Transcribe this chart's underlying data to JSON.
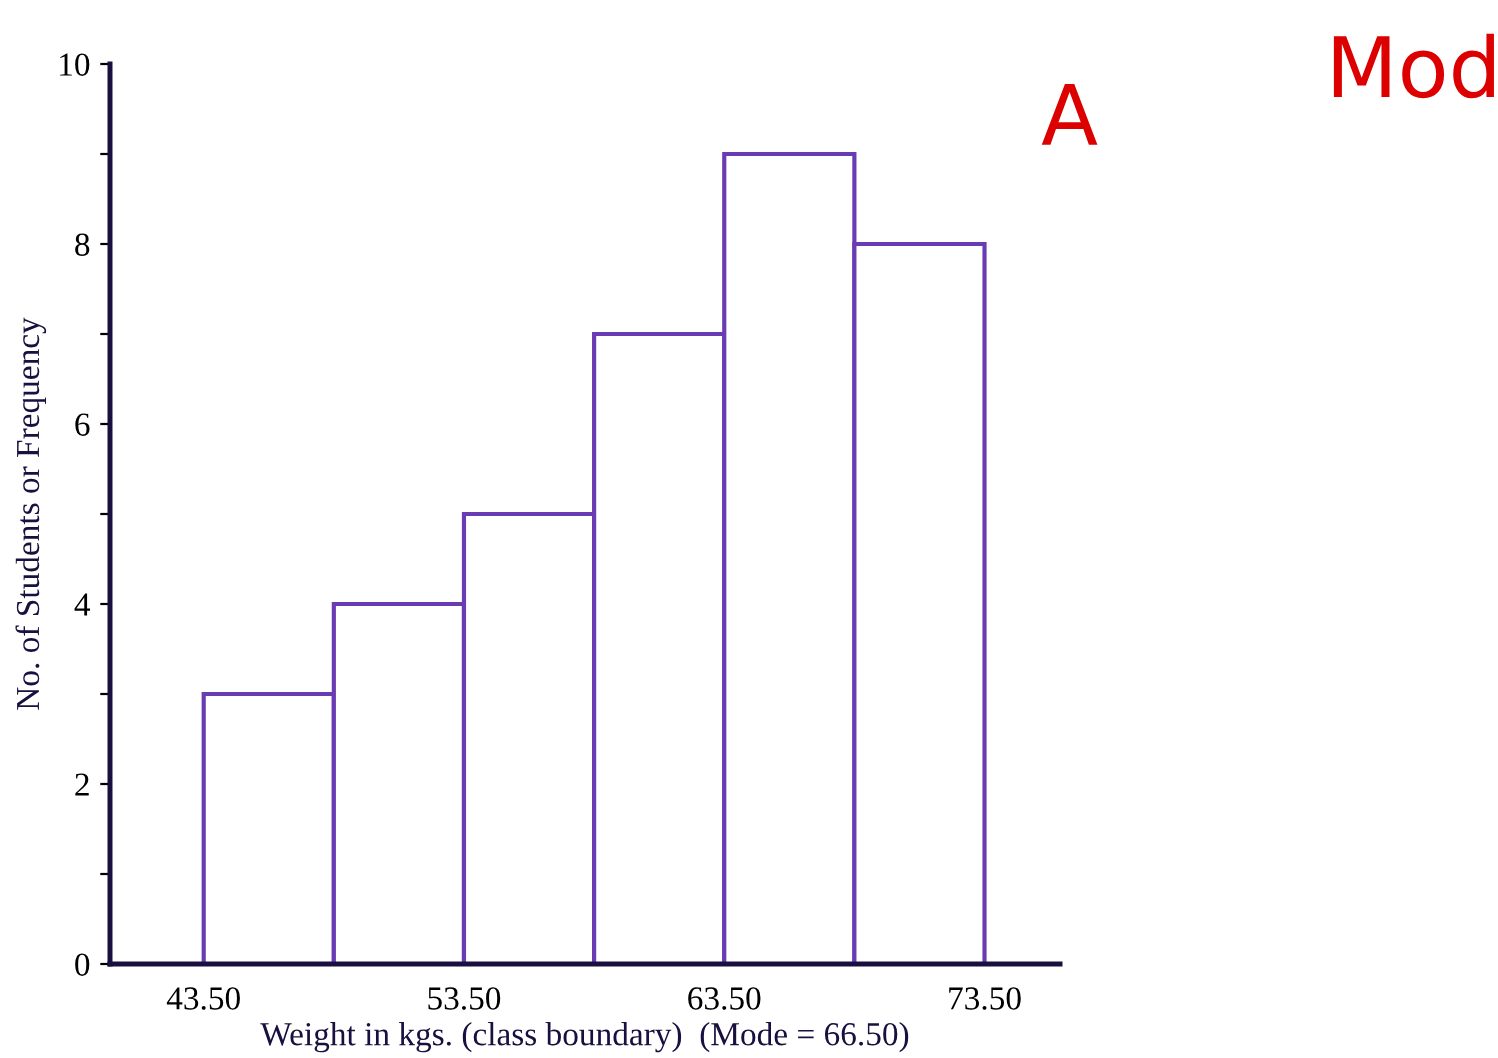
{
  "chart_data": {
    "type": "histogram",
    "bins": [
      43.5,
      48.5,
      53.5,
      58.5,
      63.5,
      68.5,
      73.5
    ],
    "values": [
      3,
      4,
      5,
      7,
      9,
      8
    ],
    "color": "#6a3cb4",
    "xlabel": "Weight in kgs. (class boundary)  (Mode = 66.50)",
    "ylabel": "No. of Students or Frequency",
    "xlim": [
      39.9,
      76.4
    ],
    "ylim": [
      0,
      10
    ],
    "xticks": [
      {
        "value": 43.5,
        "label": "43.50"
      },
      {
        "value": 53.5,
        "label": "53.50"
      },
      {
        "value": 63.5,
        "label": "63.50"
      },
      {
        "value": 73.5,
        "label": "73.50"
      }
    ],
    "yticks": [
      0,
      {
        "value": 1,
        "label": null
      },
      2,
      {
        "value": 3,
        "label": null
      },
      4,
      {
        "value": 5,
        "label": null
      },
      6,
      {
        "value": 7,
        "label": null
      },
      8,
      {
        "value": 9,
        "label": null
      },
      10
    ],
    "annotations": [
      "A",
      "Mod"
    ],
    "grid": false,
    "legend": false
  }
}
